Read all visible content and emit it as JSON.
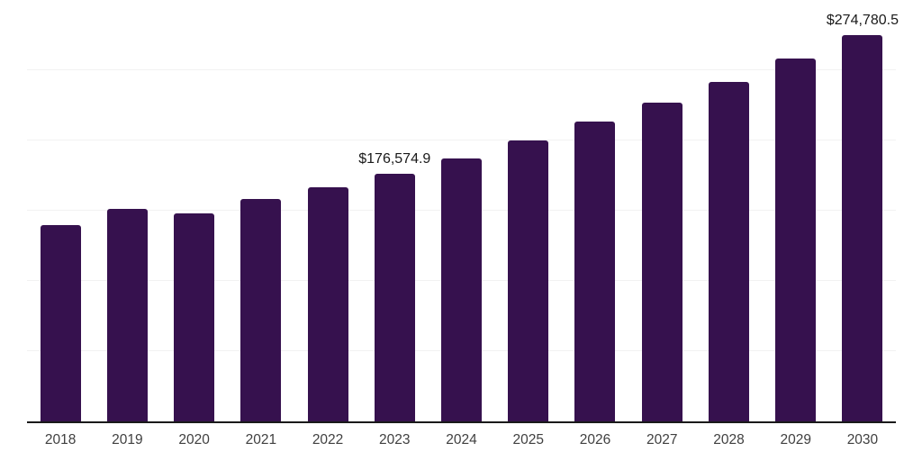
{
  "chart_data": {
    "type": "bar",
    "title": "",
    "xlabel": "",
    "ylabel": "",
    "legend": "none",
    "grid": "horizontal-only",
    "categories": [
      "2018",
      "2019",
      "2020",
      "2021",
      "2022",
      "2023",
      "2024",
      "2025",
      "2026",
      "2027",
      "2028",
      "2029",
      "2030"
    ],
    "values": [
      139700,
      151600,
      148100,
      158300,
      166700,
      176574.9,
      187200,
      200000,
      213500,
      226900,
      241700,
      258300,
      274780.5
    ],
    "point_labels": {
      "2023": "$176,574.9",
      "2030": "$274,780.5"
    },
    "ylim": [
      0,
      300000
    ],
    "gridline_step": 50000,
    "colors": {
      "bar": "#36114E",
      "gridline": "#f2f2f2",
      "axis_line": "#1a1a1a",
      "tick_label": "#404040",
      "value_label": "#1a1a1a"
    }
  }
}
